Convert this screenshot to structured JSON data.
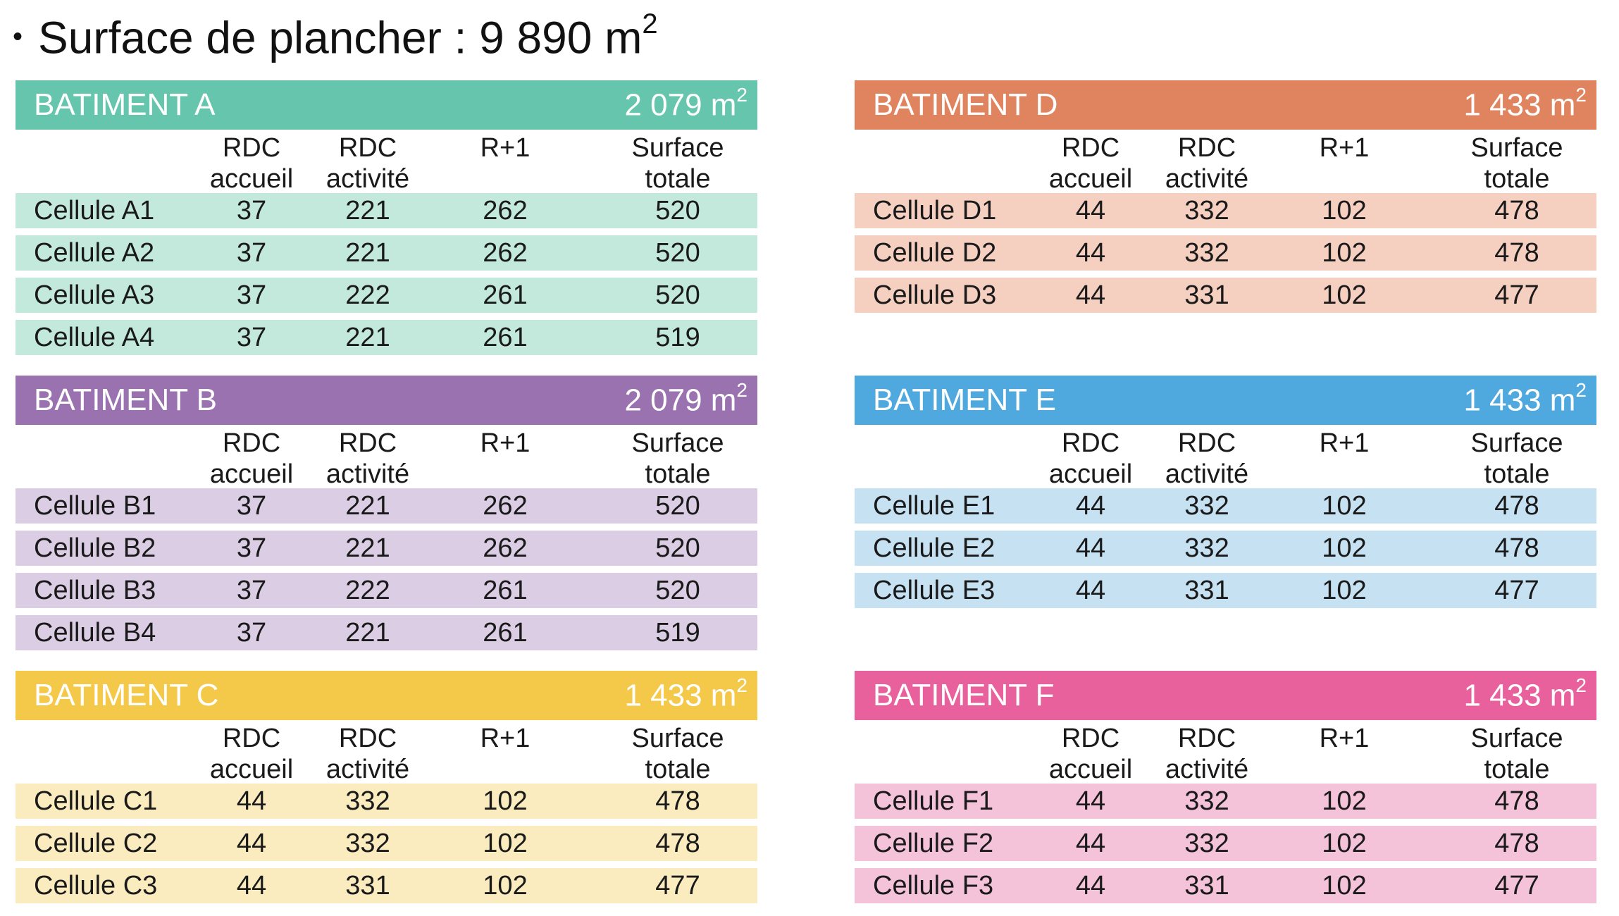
{
  "title": {
    "bullet": "•",
    "text": "Surface de plancher : 9 890 m",
    "unit_sup": "2"
  },
  "columns": {
    "accueil": "RDC\naccueil",
    "activite": "RDC\nactivité",
    "r1": "R+1",
    "total": "Surface\ntotale"
  },
  "buildings": [
    {
      "name": "BATIMENT A",
      "area": "2 079 m",
      "sup": "2",
      "header_color": "#66c5ad",
      "row_color": "#c3e9dd",
      "rows": [
        {
          "label": "Cellule A1",
          "accueil": "37",
          "activite": "221",
          "r1": "262",
          "total": "520"
        },
        {
          "label": "Cellule A2",
          "accueil": "37",
          "activite": "221",
          "r1": "262",
          "total": "520"
        },
        {
          "label": "Cellule A3",
          "accueil": "37",
          "activite": "222",
          "r1": "261",
          "total": "520"
        },
        {
          "label": "Cellule A4",
          "accueil": "37",
          "activite": "221",
          "r1": "261",
          "total": "519"
        }
      ]
    },
    {
      "name": "BATIMENT B",
      "area": "2 079 m",
      "sup": "2",
      "header_color": "#9b72b0",
      "row_color": "#dbcde4",
      "rows": [
        {
          "label": "Cellule B1",
          "accueil": "37",
          "activite": "221",
          "r1": "262",
          "total": "520"
        },
        {
          "label": "Cellule B2",
          "accueil": "37",
          "activite": "221",
          "r1": "262",
          "total": "520"
        },
        {
          "label": "Cellule B3",
          "accueil": "37",
          "activite": "222",
          "r1": "261",
          "total": "520"
        },
        {
          "label": "Cellule B4",
          "accueil": "37",
          "activite": "221",
          "r1": "261",
          "total": "519"
        }
      ]
    },
    {
      "name": "BATIMENT C",
      "area": "1 433 m",
      "sup": "2",
      "header_color": "#f4c94a",
      "row_color": "#faecbf",
      "rows": [
        {
          "label": "Cellule C1",
          "accueil": "44",
          "activite": "332",
          "r1": "102",
          "total": "478"
        },
        {
          "label": "Cellule C2",
          "accueil": "44",
          "activite": "332",
          "r1": "102",
          "total": "478"
        },
        {
          "label": "Cellule C3",
          "accueil": "44",
          "activite": "331",
          "r1": "102",
          "total": "477"
        }
      ]
    },
    {
      "name": "BATIMENT D",
      "area": "1 433 m",
      "sup": "2",
      "header_color": "#e0845f",
      "row_color": "#f5cfc0",
      "rows": [
        {
          "label": "Cellule D1",
          "accueil": "44",
          "activite": "332",
          "r1": "102",
          "total": "478"
        },
        {
          "label": "Cellule D2",
          "accueil": "44",
          "activite": "332",
          "r1": "102",
          "total": "478"
        },
        {
          "label": "Cellule D3",
          "accueil": "44",
          "activite": "331",
          "r1": "102",
          "total": "477"
        }
      ]
    },
    {
      "name": "BATIMENT E",
      "area": "1 433 m",
      "sup": "2",
      "header_color": "#4fa9de",
      "row_color": "#c6e1f2",
      "rows": [
        {
          "label": "Cellule E1",
          "accueil": "44",
          "activite": "332",
          "r1": "102",
          "total": "478"
        },
        {
          "label": "Cellule E2",
          "accueil": "44",
          "activite": "332",
          "r1": "102",
          "total": "478"
        },
        {
          "label": "Cellule E3",
          "accueil": "44",
          "activite": "331",
          "r1": "102",
          "total": "477"
        }
      ]
    },
    {
      "name": "BATIMENT F",
      "area": "1 433 m",
      "sup": "2",
      "header_color": "#e8609c",
      "row_color": "#f4c3d9",
      "rows": [
        {
          "label": "Cellule F1",
          "accueil": "44",
          "activite": "332",
          "r1": "102",
          "total": "478"
        },
        {
          "label": "Cellule F2",
          "accueil": "44",
          "activite": "332",
          "r1": "102",
          "total": "478"
        },
        {
          "label": "Cellule F3",
          "accueil": "44",
          "activite": "331",
          "r1": "102",
          "total": "477"
        }
      ]
    }
  ]
}
